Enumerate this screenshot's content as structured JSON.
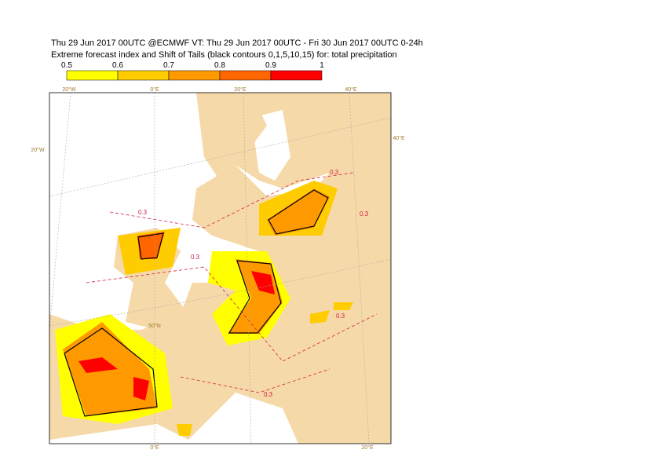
{
  "header": {
    "line1": "Thu 29 Jun 2017 00UTC @ECMWF VT: Thu 29 Jun 2017 00UTC - Fri 30 Jun 2017 00UTC  0-24h",
    "line2": "Extreme forecast index and Shift of Tails (black contours 0,1,5,10,15) for: total precipitation"
  },
  "colorbar": {
    "ticks": [
      0.5,
      0.6,
      0.7,
      0.8,
      0.9,
      1
    ],
    "colors": [
      "#ffff00",
      "#ffcc00",
      "#ff9900",
      "#ff6600",
      "#ff0000"
    ]
  },
  "map": {
    "graticule_labels": [
      "20°W",
      "0°E",
      "20°E",
      "40°E",
      "20°W",
      "40°E",
      "50°N",
      "0°E",
      "20°E"
    ],
    "contour_labels": [
      "0.3",
      "0.3",
      "0.3",
      "0.3",
      "0.3",
      "0.3"
    ]
  }
}
